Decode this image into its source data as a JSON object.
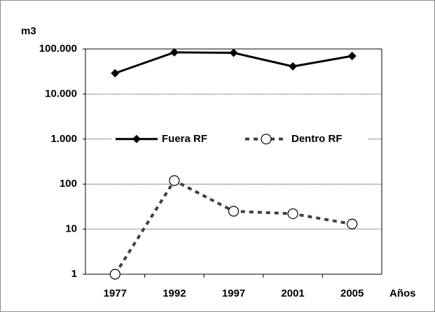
{
  "chart_data": {
    "type": "line",
    "y_label": "m3",
    "x_label": "Años",
    "categories": [
      "1977",
      "1992",
      "1997",
      "2001",
      "2005"
    ],
    "series": [
      {
        "name": "Fuera RF",
        "color": "#000000",
        "marker": "diamond",
        "line_style": "solid",
        "values": [
          29000,
          84000,
          82000,
          41000,
          70000
        ]
      },
      {
        "name": "Dentro RF",
        "color": "#404040",
        "marker": "circle",
        "line_style": "dashed",
        "values": [
          1,
          120,
          25,
          22,
          13
        ]
      }
    ],
    "log_scale": true,
    "ylim": [
      1,
      100000
    ],
    "yticks": [
      1,
      10,
      100,
      {
        "value": 1000,
        "label": "1.000"
      },
      {
        "value": 10000,
        "label": "10.000"
      },
      {
        "value": 100000,
        "label": "100.000"
      }
    ],
    "grid": true,
    "legend": "center"
  }
}
